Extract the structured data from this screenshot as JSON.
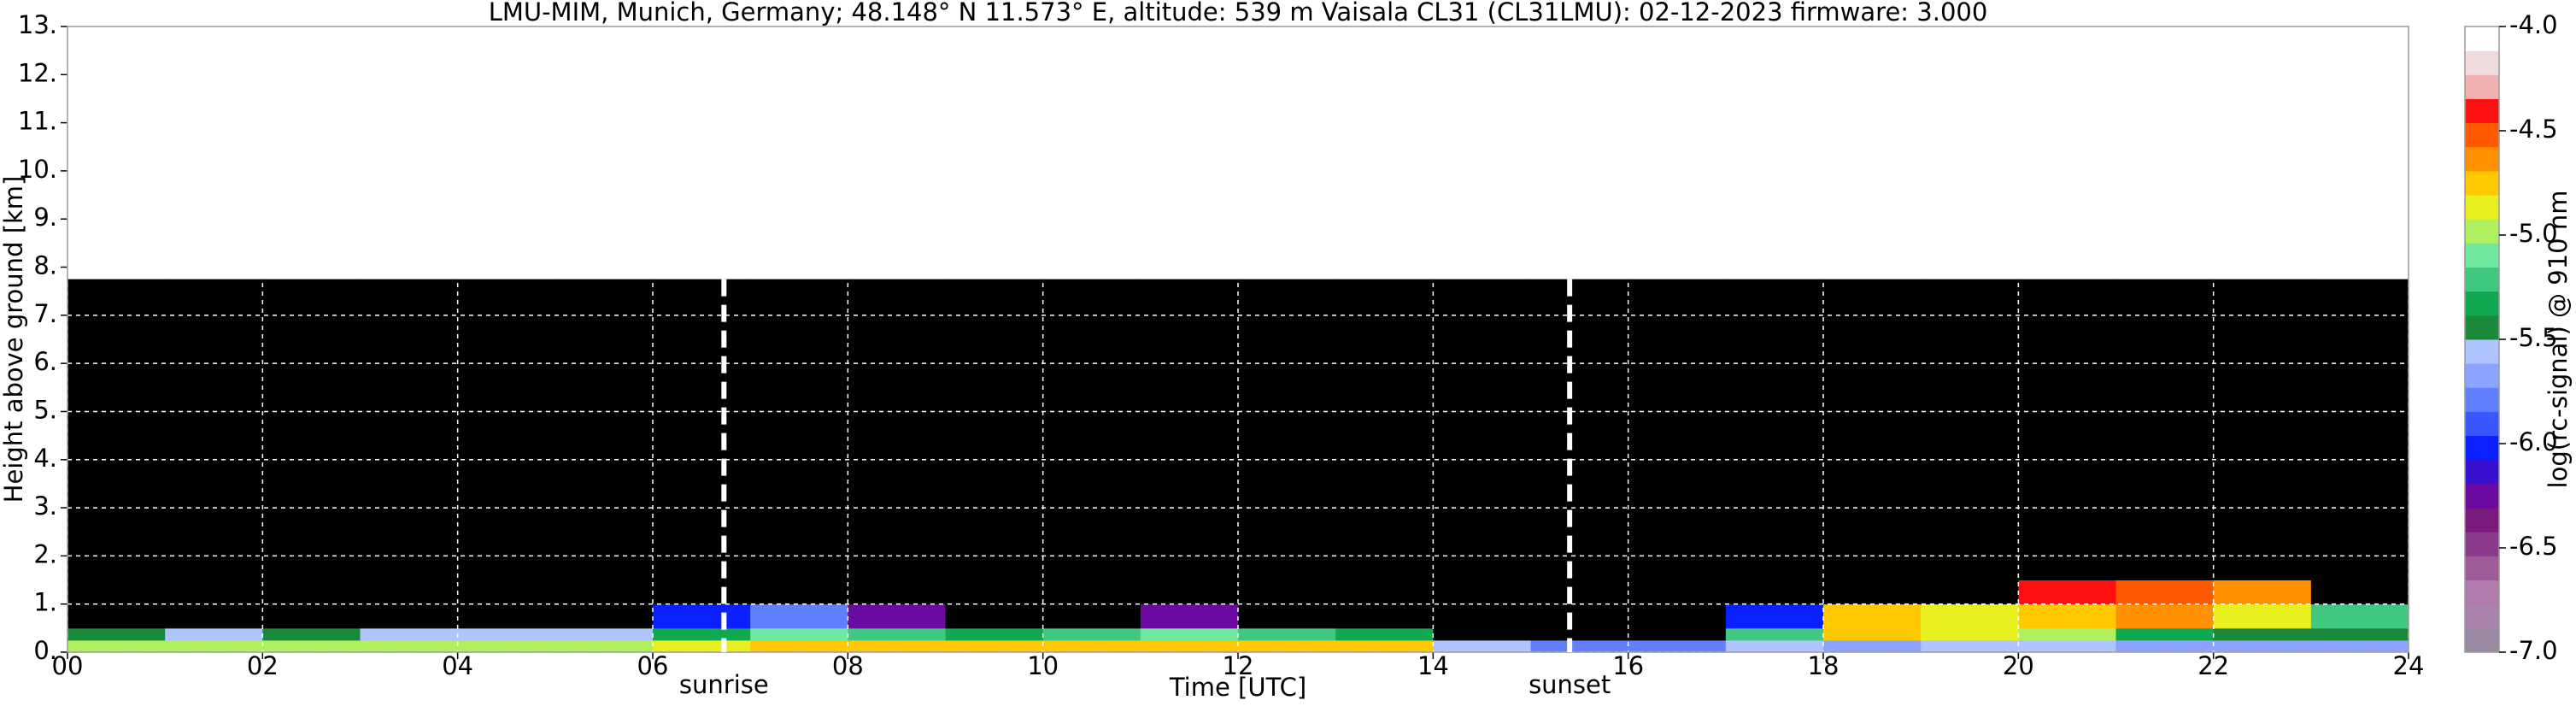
{
  "chart_data": {
    "type": "heatmap",
    "title": "LMU-MIM, Munich, Germany; 48.148° N 11.573° E, altitude: 539 m    Vaisala CL31 (CL31LMU): 02-12-2023    firmware: 3.000",
    "x_label": "Time [UTC]",
    "y_label": "Height above ground [km]",
    "colorbar_label": "log(rc-signal) @ 910 nm",
    "xlim": [
      0,
      24
    ],
    "ylim": [
      0,
      13
    ],
    "xticks": [
      {
        "value": 0,
        "label": "00"
      },
      {
        "value": 2,
        "label": "02"
      },
      {
        "value": 4,
        "label": "04"
      },
      {
        "value": 6,
        "label": "06"
      },
      {
        "value": 8,
        "label": "08"
      },
      10,
      12,
      14,
      16,
      18,
      20,
      22,
      24
    ],
    "yticks": [
      {
        "value": 0,
        "label": "0."
      },
      {
        "value": 1,
        "label": "1."
      },
      {
        "value": 2,
        "label": "2."
      },
      {
        "value": 3,
        "label": "3."
      },
      {
        "value": 4,
        "label": "4."
      },
      {
        "value": 5,
        "label": "5."
      },
      {
        "value": 6,
        "label": "6."
      },
      {
        "value": 7,
        "label": "7."
      },
      {
        "value": 8,
        "label": "8."
      },
      {
        "value": 9,
        "label": "9."
      },
      {
        "value": 10,
        "label": "10."
      },
      {
        "value": 11,
        "label": "11."
      },
      {
        "value": 12,
        "label": "12."
      },
      {
        "value": 13,
        "label": "13."
      }
    ],
    "clim": [
      -7,
      -4
    ],
    "cticks": [
      {
        "value": -4,
        "label": "-4.0"
      },
      {
        "value": -4.5,
        "label": "-4.5"
      },
      {
        "value": -5,
        "label": "-5.0"
      },
      {
        "value": -5.5,
        "label": "-5.5"
      },
      {
        "value": -6,
        "label": "-6.0"
      },
      {
        "value": -6.5,
        "label": "-6.5"
      },
      {
        "value": -7,
        "label": "-7.0"
      }
    ],
    "colors": [
      "#9c8aa4",
      "#a884aa",
      "#b07aaa",
      "#a05c98",
      "#8c3a8c",
      "#7a1a7c",
      "#6a0aa0",
      "#3a10d0",
      "#0a20ff",
      "#3858ff",
      "#6080ff",
      "#8ca4ff",
      "#b0c4ff",
      "#1a8a3a",
      "#10a850",
      "#40c880",
      "#70e8a0",
      "#b0f060",
      "#e8f020",
      "#ffc800",
      "#ff9000",
      "#ff5a00",
      "#ff1010",
      "#f0b0b0",
      "#f0dcdc",
      "#ffffff"
    ],
    "below_color": "#000000",
    "grid": true,
    "x_edges": [
      0,
      1,
      2,
      3,
      4,
      5,
      6,
      7,
      8,
      9,
      10,
      11,
      12,
      13,
      14,
      15,
      16,
      17,
      18,
      19,
      20,
      21,
      22,
      23,
      24
    ],
    "y_edges": [
      0,
      0.25,
      0.5,
      1.0,
      1.5,
      7.75
    ],
    "z": [
      [
        -5.0,
        -5.0,
        -5.0,
        -5.0,
        -5.0,
        -5.0,
        -4.9,
        -4.7,
        -4.7,
        -4.7,
        -4.7,
        -4.7,
        -4.7,
        -4.7,
        -5.6,
        -5.8,
        -5.8,
        -5.6,
        -5.7,
        -5.6,
        -5.6,
        -5.7,
        -5.7,
        -5.7
      ],
      [
        -5.4,
        -5.6,
        -5.5,
        -5.6,
        -5.6,
        -5.6,
        -5.3,
        -5.1,
        -5.2,
        -5.3,
        -5.2,
        -5.1,
        -5.2,
        -5.3,
        -7.5,
        -7.5,
        -7.5,
        -5.2,
        -4.8,
        -4.9,
        -5.0,
        -5.3,
        -5.4,
        -5.5
      ],
      [
        -7.5,
        -7.5,
        -7.5,
        -7.5,
        -7.5,
        -7.5,
        -6.0,
        -5.8,
        -6.2,
        -7.5,
        -7.5,
        -6.2,
        -7.5,
        -7.5,
        -7.5,
        -7.5,
        -7.5,
        -6.0,
        -4.7,
        -4.9,
        -4.7,
        -4.6,
        -4.9,
        -5.2
      ],
      [
        -7.5,
        -7.5,
        -7.5,
        -7.5,
        -7.5,
        -7.5,
        -7.5,
        -7.5,
        -7.5,
        -7.5,
        -7.5,
        -7.5,
        -7.5,
        -7.5,
        -7.5,
        -7.5,
        -7.5,
        -7.5,
        -7.5,
        -7.5,
        -4.4,
        -4.5,
        -4.6,
        -7.5
      ],
      [
        -7.5,
        -7.5,
        -7.5,
        -7.5,
        -7.5,
        -7.5,
        -7.5,
        -7.5,
        -7.5,
        -7.5,
        -7.5,
        -7.5,
        -7.5,
        -7.5,
        -7.5,
        -7.5,
        -7.5,
        -7.5,
        -7.5,
        -7.5,
        -7.5,
        -7.5,
        -7.5,
        -7.5
      ]
    ],
    "annotations": [
      {
        "text": "sunrise",
        "x": 6.73
      },
      {
        "text": "sunset",
        "x": 15.4
      }
    ]
  }
}
